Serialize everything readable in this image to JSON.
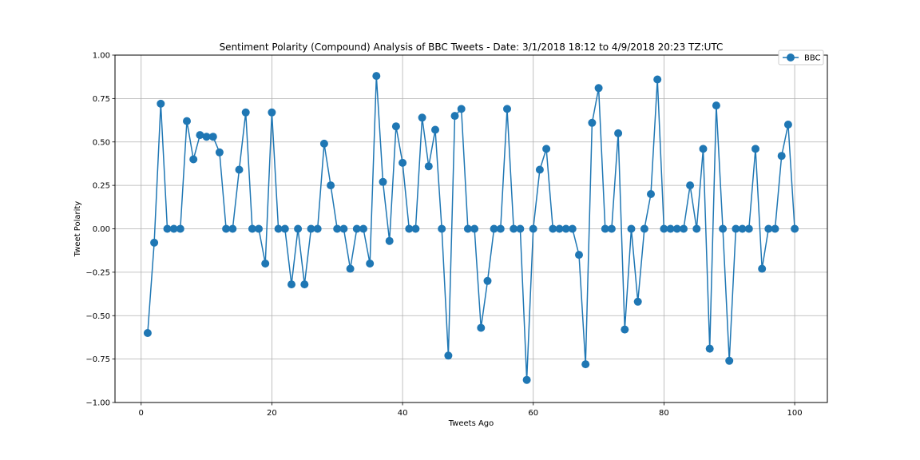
{
  "chart_data": {
    "type": "line",
    "title": "Sentiment Polarity (Compound) Analysis of BBC Tweets - Date: 3/1/2018 18:12 to 4/9/2018 20:23 TZ:UTC",
    "xlabel": "Tweets Ago",
    "ylabel": "Tweet Polarity",
    "xlim": [
      -4,
      105
    ],
    "ylim": [
      -1.0,
      1.0
    ],
    "xticks": [
      0,
      20,
      40,
      60,
      80,
      100
    ],
    "yticks": [
      -1.0,
      -0.75,
      -0.5,
      -0.25,
      0.0,
      0.25,
      0.5,
      0.75,
      1.0
    ],
    "xtick_labels": [
      "0",
      "20",
      "40",
      "60",
      "80",
      "100"
    ],
    "ytick_labels": [
      "−1.00",
      "−0.75",
      "−0.50",
      "−0.25",
      "0.00",
      "0.25",
      "0.50",
      "0.75",
      "1.00"
    ],
    "grid": true,
    "legend_position": "top-right",
    "series": [
      {
        "name": "BBC",
        "color": "#1f77b4",
        "marker": "circle",
        "x": [
          1,
          2,
          3,
          4,
          5,
          6,
          7,
          8,
          9,
          10,
          11,
          12,
          13,
          14,
          15,
          16,
          17,
          18,
          19,
          20,
          21,
          22,
          23,
          24,
          25,
          26,
          27,
          28,
          29,
          30,
          31,
          32,
          33,
          34,
          35,
          36,
          37,
          38,
          39,
          40,
          41,
          42,
          43,
          44,
          45,
          46,
          47,
          48,
          49,
          50,
          51,
          52,
          53,
          54,
          55,
          56,
          57,
          58,
          59,
          60,
          61,
          62,
          63,
          64,
          65,
          66,
          67,
          68,
          69,
          70,
          71,
          72,
          73,
          74,
          75,
          76,
          77,
          78,
          79,
          80,
          81,
          82,
          83,
          84,
          85,
          86,
          87,
          88,
          89,
          90,
          91,
          92,
          93,
          94,
          95,
          96,
          97,
          98,
          99,
          100
        ],
        "y": [
          -0.6,
          -0.08,
          0.72,
          0,
          0,
          0,
          0.62,
          0.4,
          0.54,
          0.53,
          0.53,
          0.44,
          0,
          0,
          0.34,
          0.67,
          0,
          0,
          -0.2,
          0.67,
          0,
          0,
          -0.32,
          0,
          -0.32,
          0,
          0,
          0.49,
          0.25,
          0,
          0,
          -0.23,
          0,
          0,
          -0.2,
          0.88,
          0.27,
          -0.07,
          0.59,
          0.38,
          0,
          0,
          0.64,
          0.36,
          0.57,
          0,
          -0.73,
          0.65,
          0.69,
          0,
          0,
          -0.57,
          -0.3,
          0,
          0,
          0.69,
          0,
          0,
          -0.87,
          0,
          0.34,
          0.46,
          0,
          0,
          0,
          0,
          -0.15,
          -0.78,
          0.61,
          0.81,
          0,
          0,
          0.55,
          -0.58,
          0,
          -0.42,
          0,
          0.2,
          0.86,
          0,
          0,
          0,
          0,
          0.25,
          0,
          0.46,
          -0.69,
          0.71,
          0,
          -0.76,
          0,
          0,
          0,
          0.46,
          -0.23,
          0,
          0,
          0.42,
          0.6,
          0
        ]
      }
    ]
  }
}
